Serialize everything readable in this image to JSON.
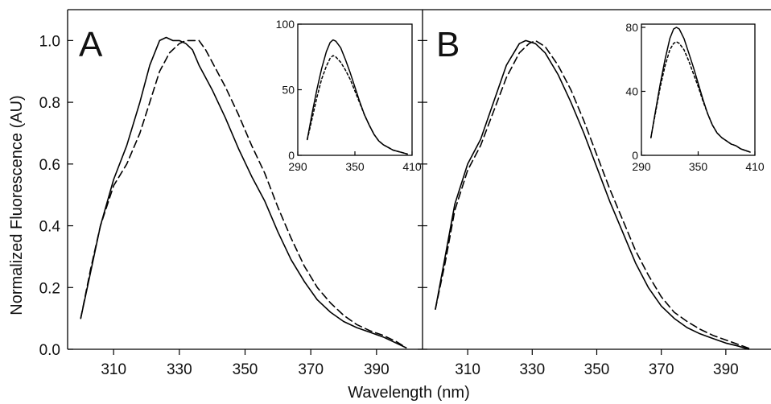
{
  "figure": {
    "ylabel": "Normalized Fluorescence (AU)",
    "xlabel": "Wavelength (nm)"
  },
  "chart_data": [
    {
      "type": "line",
      "panel_label": "A",
      "xlabel": "Wavelength (nm)",
      "ylabel": "Normalized Fluorescence (AU)",
      "xlim": [
        296,
        404
      ],
      "ylim": [
        0,
        1.1
      ],
      "xticks": [
        310,
        330,
        350,
        370,
        390
      ],
      "yticks": [
        0.0,
        0.2,
        0.4,
        0.6,
        0.8,
        1.0
      ],
      "ytick_labels": [
        "0.0",
        "0.2",
        "0.4",
        "0.6",
        "0.8",
        "1.0"
      ],
      "grid": false,
      "series": [
        {
          "style": "solid",
          "points": [
            [
              300,
              0.1
            ],
            [
              303,
              0.25
            ],
            [
              306,
              0.4
            ],
            [
              310,
              0.55
            ],
            [
              314,
              0.66
            ],
            [
              318,
              0.8
            ],
            [
              321,
              0.92
            ],
            [
              324,
              1.0
            ],
            [
              326,
              1.01
            ],
            [
              328,
              1.0
            ],
            [
              330,
              1.0
            ],
            [
              332,
              0.99
            ],
            [
              334,
              0.97
            ],
            [
              336,
              0.92
            ],
            [
              340,
              0.84
            ],
            [
              344,
              0.75
            ],
            [
              348,
              0.65
            ],
            [
              352,
              0.56
            ],
            [
              356,
              0.48
            ],
            [
              360,
              0.38
            ],
            [
              364,
              0.29
            ],
            [
              368,
              0.22
            ],
            [
              372,
              0.16
            ],
            [
              376,
              0.12
            ],
            [
              380,
              0.09
            ],
            [
              384,
              0.07
            ],
            [
              388,
              0.055
            ],
            [
              392,
              0.04
            ],
            [
              396,
              0.02
            ],
            [
              399,
              0.005
            ]
          ]
        },
        {
          "style": "dashed",
          "points": [
            [
              300,
              0.1
            ],
            [
              303,
              0.26
            ],
            [
              306,
              0.4
            ],
            [
              310,
              0.53
            ],
            [
              314,
              0.6
            ],
            [
              318,
              0.7
            ],
            [
              321,
              0.8
            ],
            [
              324,
              0.9
            ],
            [
              327,
              0.96
            ],
            [
              330,
              0.99
            ],
            [
              332,
              1.0
            ],
            [
              334,
              1.0
            ],
            [
              336,
              1.0
            ],
            [
              338,
              0.97
            ],
            [
              340,
              0.93
            ],
            [
              344,
              0.85
            ],
            [
              348,
              0.76
            ],
            [
              352,
              0.66
            ],
            [
              356,
              0.57
            ],
            [
              360,
              0.46
            ],
            [
              364,
              0.36
            ],
            [
              368,
              0.27
            ],
            [
              372,
              0.2
            ],
            [
              376,
              0.15
            ],
            [
              380,
              0.11
            ],
            [
              384,
              0.08
            ],
            [
              388,
              0.06
            ],
            [
              392,
              0.045
            ],
            [
              396,
              0.025
            ],
            [
              399,
              0.005
            ]
          ]
        }
      ],
      "inset": {
        "type": "line",
        "xlim": [
          290,
          410
        ],
        "ylim": [
          0,
          100
        ],
        "xticks": [
          290,
          350,
          410
        ],
        "yticks": [
          0,
          50,
          100
        ],
        "series": [
          {
            "style": "solid",
            "points": [
              [
                300,
                12
              ],
              [
                305,
                32
              ],
              [
                310,
                50
              ],
              [
                315,
                66
              ],
              [
                320,
                79
              ],
              [
                324,
                86
              ],
              [
                327,
                88
              ],
              [
                330,
                87
              ],
              [
                335,
                82
              ],
              [
                340,
                73
              ],
              [
                345,
                63
              ],
              [
                350,
                52
              ],
              [
                355,
                41
              ],
              [
                360,
                31
              ],
              [
                365,
                23
              ],
              [
                370,
                16
              ],
              [
                375,
                11
              ],
              [
                380,
                8
              ],
              [
                385,
                6
              ],
              [
                390,
                4
              ],
              [
                395,
                3
              ],
              [
                400,
                2
              ],
              [
                405,
                1
              ]
            ]
          },
          {
            "style": "dotted",
            "points": [
              [
                300,
                12
              ],
              [
                305,
                28
              ],
              [
                310,
                44
              ],
              [
                315,
                58
              ],
              [
                320,
                68
              ],
              [
                324,
                74
              ],
              [
                327,
                76
              ],
              [
                330,
                75
              ],
              [
                335,
                71
              ],
              [
                340,
                65
              ],
              [
                345,
                58
              ],
              [
                350,
                49
              ],
              [
                355,
                40
              ],
              [
                360,
                31
              ],
              [
                365,
                23
              ],
              [
                370,
                16
              ],
              [
                375,
                11
              ],
              [
                380,
                8
              ],
              [
                385,
                6
              ],
              [
                390,
                4
              ],
              [
                395,
                3
              ],
              [
                400,
                2
              ],
              [
                405,
                1
              ]
            ]
          }
        ]
      }
    },
    {
      "type": "line",
      "panel_label": "B",
      "xlabel": "Wavelength (nm)",
      "ylabel": "Normalized Fluorescence (AU)",
      "xlim": [
        296,
        404
      ],
      "ylim": [
        0,
        1.1
      ],
      "xticks": [
        310,
        330,
        350,
        370,
        390
      ],
      "yticks": [
        0.0,
        0.2,
        0.4,
        0.6,
        0.8,
        1.0
      ],
      "grid": false,
      "series": [
        {
          "style": "solid",
          "points": [
            [
              300,
              0.13
            ],
            [
              303,
              0.3
            ],
            [
              306,
              0.47
            ],
            [
              310,
              0.6
            ],
            [
              314,
              0.68
            ],
            [
              318,
              0.8
            ],
            [
              322,
              0.92
            ],
            [
              326,
              0.99
            ],
            [
              328,
              1.0
            ],
            [
              331,
              0.99
            ],
            [
              334,
              0.96
            ],
            [
              338,
              0.89
            ],
            [
              342,
              0.8
            ],
            [
              346,
              0.7
            ],
            [
              350,
              0.59
            ],
            [
              354,
              0.48
            ],
            [
              358,
              0.38
            ],
            [
              362,
              0.28
            ],
            [
              366,
              0.2
            ],
            [
              370,
              0.14
            ],
            [
              374,
              0.1
            ],
            [
              378,
              0.07
            ],
            [
              382,
              0.05
            ],
            [
              386,
              0.035
            ],
            [
              390,
              0.02
            ],
            [
              394,
              0.01
            ],
            [
              397,
              0.0
            ]
          ]
        },
        {
          "style": "dashed",
          "points": [
            [
              300,
              0.13
            ],
            [
              303,
              0.28
            ],
            [
              306,
              0.45
            ],
            [
              310,
              0.58
            ],
            [
              314,
              0.66
            ],
            [
              318,
              0.77
            ],
            [
              322,
              0.88
            ],
            [
              326,
              0.96
            ],
            [
              329,
              0.99
            ],
            [
              331,
              1.0
            ],
            [
              334,
              0.98
            ],
            [
              338,
              0.92
            ],
            [
              342,
              0.84
            ],
            [
              346,
              0.74
            ],
            [
              350,
              0.63
            ],
            [
              354,
              0.52
            ],
            [
              358,
              0.42
            ],
            [
              362,
              0.32
            ],
            [
              366,
              0.24
            ],
            [
              370,
              0.17
            ],
            [
              374,
              0.12
            ],
            [
              378,
              0.09
            ],
            [
              382,
              0.065
            ],
            [
              386,
              0.045
            ],
            [
              390,
              0.03
            ],
            [
              394,
              0.015
            ],
            [
              398,
              0.0
            ]
          ]
        }
      ],
      "inset": {
        "type": "line",
        "xlim": [
          290,
          410
        ],
        "ylim": [
          0,
          82
        ],
        "xticks": [
          290,
          350,
          410
        ],
        "yticks": [
          0,
          40,
          80
        ],
        "series": [
          {
            "style": "solid",
            "points": [
              [
                300,
                11
              ],
              [
                305,
                28
              ],
              [
                310,
                45
              ],
              [
                315,
                60
              ],
              [
                320,
                73
              ],
              [
                324,
                79
              ],
              [
                327,
                80
              ],
              [
                330,
                79
              ],
              [
                335,
                73
              ],
              [
                340,
                64
              ],
              [
                345,
                55
              ],
              [
                350,
                45
              ],
              [
                355,
                35
              ],
              [
                360,
                26
              ],
              [
                365,
                19
              ],
              [
                370,
                14
              ],
              [
                375,
                11
              ],
              [
                380,
                9
              ],
              [
                385,
                7
              ],
              [
                390,
                6
              ],
              [
                395,
                4
              ],
              [
                400,
                3
              ],
              [
                405,
                2
              ]
            ]
          },
          {
            "style": "dotted",
            "points": [
              [
                300,
                11
              ],
              [
                305,
                27
              ],
              [
                310,
                43
              ],
              [
                315,
                56
              ],
              [
                320,
                66
              ],
              [
                324,
                70
              ],
              [
                327,
                71
              ],
              [
                330,
                70
              ],
              [
                335,
                66
              ],
              [
                340,
                59
              ],
              [
                345,
                51
              ],
              [
                350,
                43
              ],
              [
                355,
                34
              ],
              [
                360,
                26
              ],
              [
                365,
                19
              ],
              [
                370,
                14
              ],
              [
                375,
                11
              ],
              [
                380,
                9
              ],
              [
                385,
                7
              ],
              [
                390,
                6
              ],
              [
                395,
                4
              ],
              [
                400,
                3
              ],
              [
                405,
                2
              ]
            ]
          }
        ]
      }
    }
  ]
}
